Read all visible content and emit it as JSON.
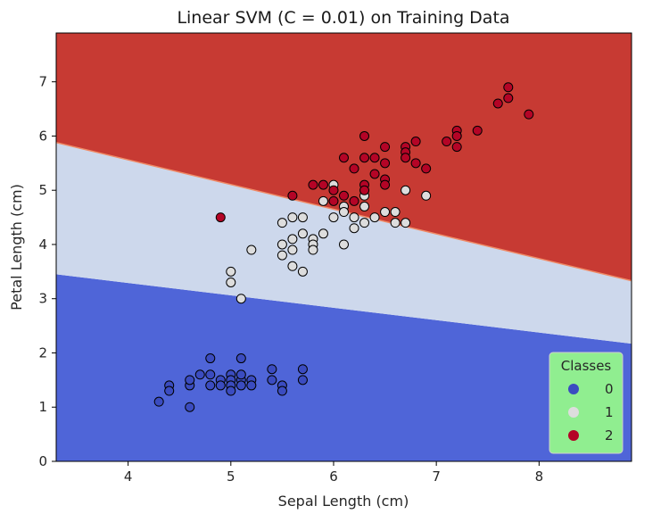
{
  "chart_data": {
    "type": "scatter",
    "title": "Linear SVM (C = 0.01) on Training Data",
    "xlabel": "Sepal Length (cm)",
    "ylabel": "Petal Length (cm)",
    "xlim": [
      3.3,
      8.9
    ],
    "ylim": [
      0,
      7.9
    ],
    "xticks": [
      4,
      5,
      6,
      7,
      8
    ],
    "yticks": [
      0,
      1,
      2,
      3,
      4,
      5,
      6,
      7
    ],
    "grid": false,
    "legend": {
      "title": "Classes",
      "placement": "bottom-right",
      "background": "#90ee90",
      "entries": [
        "0",
        "1",
        "2"
      ]
    },
    "decision_regions": {
      "colors": {
        "0": "#4f65d8",
        "1": "#cdd8ec",
        "2": "#c73a33"
      },
      "boundary_1": {
        "y_at_xmin": 3.45,
        "y_at_xmax": 2.17
      },
      "boundary_2": {
        "y_at_xmin": 5.88,
        "y_at_xmax": 3.33
      }
    },
    "series": [
      {
        "name": "0",
        "color": "#3b4cc0",
        "points": [
          [
            4.3,
            1.1
          ],
          [
            4.4,
            1.4
          ],
          [
            4.4,
            1.3
          ],
          [
            4.6,
            1.0
          ],
          [
            4.6,
            1.4
          ],
          [
            4.6,
            1.5
          ],
          [
            4.7,
            1.6
          ],
          [
            4.8,
            1.6
          ],
          [
            4.8,
            1.4
          ],
          [
            4.8,
            1.9
          ],
          [
            4.9,
            1.5
          ],
          [
            4.9,
            1.4
          ],
          [
            5.0,
            1.6
          ],
          [
            5.0,
            1.5
          ],
          [
            5.0,
            1.4
          ],
          [
            5.0,
            1.3
          ],
          [
            5.1,
            1.9
          ],
          [
            5.1,
            1.5
          ],
          [
            5.1,
            1.4
          ],
          [
            5.1,
            1.6
          ],
          [
            5.2,
            1.5
          ],
          [
            5.2,
            1.4
          ],
          [
            5.4,
            1.7
          ],
          [
            5.4,
            1.5
          ],
          [
            5.5,
            1.4
          ],
          [
            5.5,
            1.3
          ],
          [
            5.7,
            1.7
          ],
          [
            5.7,
            1.5
          ]
        ]
      },
      {
        "name": "1",
        "color": "#dddddd",
        "points": [
          [
            5.0,
            3.5
          ],
          [
            5.0,
            3.3
          ],
          [
            5.1,
            3.0
          ],
          [
            5.2,
            3.9
          ],
          [
            5.5,
            4.4
          ],
          [
            5.5,
            4.0
          ],
          [
            5.5,
            3.8
          ],
          [
            5.6,
            4.5
          ],
          [
            5.6,
            4.1
          ],
          [
            5.6,
            3.9
          ],
          [
            5.6,
            3.6
          ],
          [
            5.7,
            4.5
          ],
          [
            5.7,
            4.2
          ],
          [
            5.7,
            3.5
          ],
          [
            5.8,
            4.1
          ],
          [
            5.8,
            4.0
          ],
          [
            5.8,
            3.9
          ],
          [
            5.9,
            4.8
          ],
          [
            5.9,
            4.2
          ],
          [
            6.0,
            5.1
          ],
          [
            6.0,
            4.5
          ],
          [
            6.1,
            4.7
          ],
          [
            6.1,
            4.6
          ],
          [
            6.1,
            4.0
          ],
          [
            6.2,
            4.5
          ],
          [
            6.2,
            4.3
          ],
          [
            6.3,
            4.9
          ],
          [
            6.3,
            4.7
          ],
          [
            6.3,
            4.4
          ],
          [
            6.4,
            4.5
          ],
          [
            6.5,
            4.6
          ],
          [
            6.6,
            4.6
          ],
          [
            6.6,
            4.4
          ],
          [
            6.7,
            5.0
          ],
          [
            6.7,
            4.4
          ],
          [
            6.9,
            4.9
          ]
        ]
      },
      {
        "name": "2",
        "color": "#b40426",
        "points": [
          [
            4.9,
            4.5
          ],
          [
            5.6,
            4.9
          ],
          [
            5.8,
            5.1
          ],
          [
            5.9,
            5.1
          ],
          [
            6.0,
            5.0
          ],
          [
            6.0,
            4.8
          ],
          [
            6.1,
            5.6
          ],
          [
            6.1,
            4.9
          ],
          [
            6.2,
            5.4
          ],
          [
            6.2,
            4.8
          ],
          [
            6.3,
            6.0
          ],
          [
            6.3,
            5.6
          ],
          [
            6.3,
            5.1
          ],
          [
            6.3,
            5.0
          ],
          [
            6.4,
            5.6
          ],
          [
            6.4,
            5.3
          ],
          [
            6.5,
            5.8
          ],
          [
            6.5,
            5.5
          ],
          [
            6.5,
            5.2
          ],
          [
            6.5,
            5.1
          ],
          [
            6.7,
            5.8
          ],
          [
            6.7,
            5.7
          ],
          [
            6.7,
            5.6
          ],
          [
            6.8,
            5.9
          ],
          [
            6.8,
            5.5
          ],
          [
            6.9,
            5.4
          ],
          [
            7.1,
            5.9
          ],
          [
            7.2,
            6.1
          ],
          [
            7.2,
            6.0
          ],
          [
            7.2,
            5.8
          ],
          [
            7.4,
            6.1
          ],
          [
            7.6,
            6.6
          ],
          [
            7.7,
            6.9
          ],
          [
            7.7,
            6.7
          ],
          [
            7.9,
            6.4
          ]
        ]
      }
    ]
  }
}
